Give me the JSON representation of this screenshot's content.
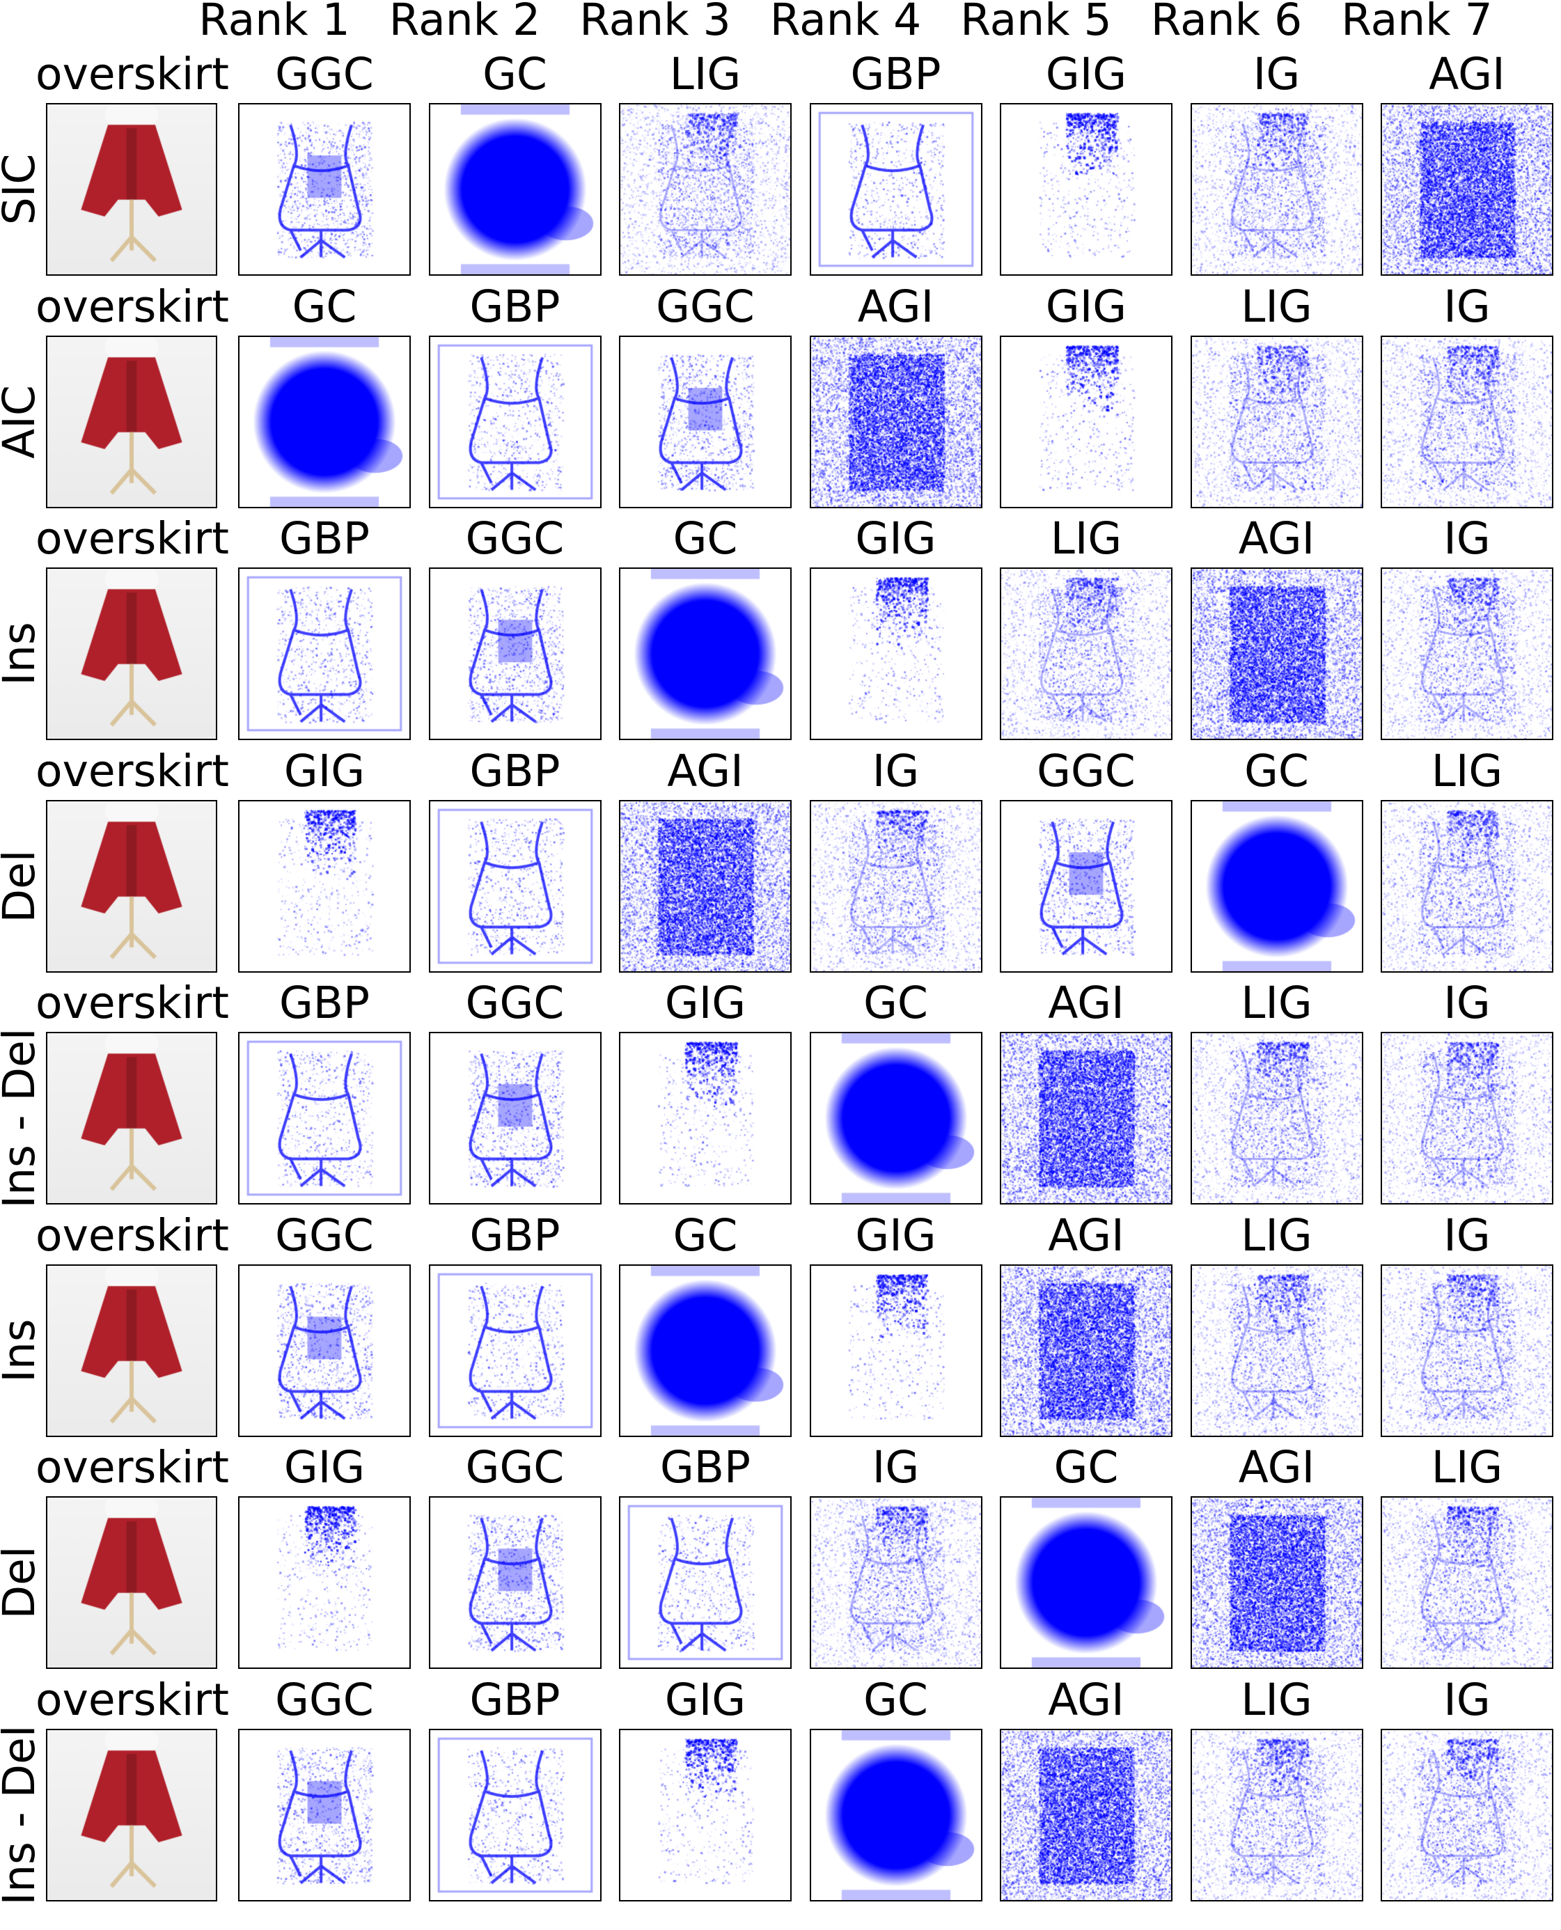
{
  "rank_headers": [
    "Rank 1",
    "Rank 2",
    "Rank 3",
    "Rank 4",
    "Rank 5",
    "Rank 6",
    "Rank 7"
  ],
  "rows": [
    {
      "label": "SIC",
      "class_name": "overskirt",
      "methods": [
        "GGC",
        "GC",
        "LIG",
        "GBP",
        "GIG",
        "IG",
        "AGI"
      ]
    },
    {
      "label": "AIC",
      "class_name": "overskirt",
      "methods": [
        "GC",
        "GBP",
        "GGC",
        "AGI",
        "GIG",
        "LIG",
        "IG"
      ]
    },
    {
      "label": "Ins",
      "class_name": "overskirt",
      "methods": [
        "GBP",
        "GGC",
        "GC",
        "GIG",
        "LIG",
        "AGI",
        "IG"
      ]
    },
    {
      "label": "Del",
      "class_name": "overskirt",
      "methods": [
        "GIG",
        "GBP",
        "AGI",
        "IG",
        "GGC",
        "GC",
        "LIG"
      ]
    },
    {
      "label": "Ins - Del",
      "class_name": "overskirt",
      "methods": [
        "GBP",
        "GGC",
        "GIG",
        "GC",
        "AGI",
        "LIG",
        "IG"
      ]
    },
    {
      "label": "Ins",
      "class_name": "overskirt",
      "methods": [
        "GGC",
        "GBP",
        "GC",
        "GIG",
        "AGI",
        "LIG",
        "IG"
      ]
    },
    {
      "label": "Del",
      "class_name": "overskirt",
      "methods": [
        "GIG",
        "GGC",
        "GBP",
        "IG",
        "GC",
        "AGI",
        "LIG"
      ]
    },
    {
      "label": "Ins - Del",
      "class_name": "overskirt",
      "methods": [
        "GGC",
        "GBP",
        "GIG",
        "GC",
        "AGI",
        "LIG",
        "IG"
      ]
    }
  ],
  "colors": {
    "heatmap": "#0000ff",
    "skirt": "#b0202a",
    "photo_background": "#ebebeb",
    "stand": "#d9c39a"
  }
}
